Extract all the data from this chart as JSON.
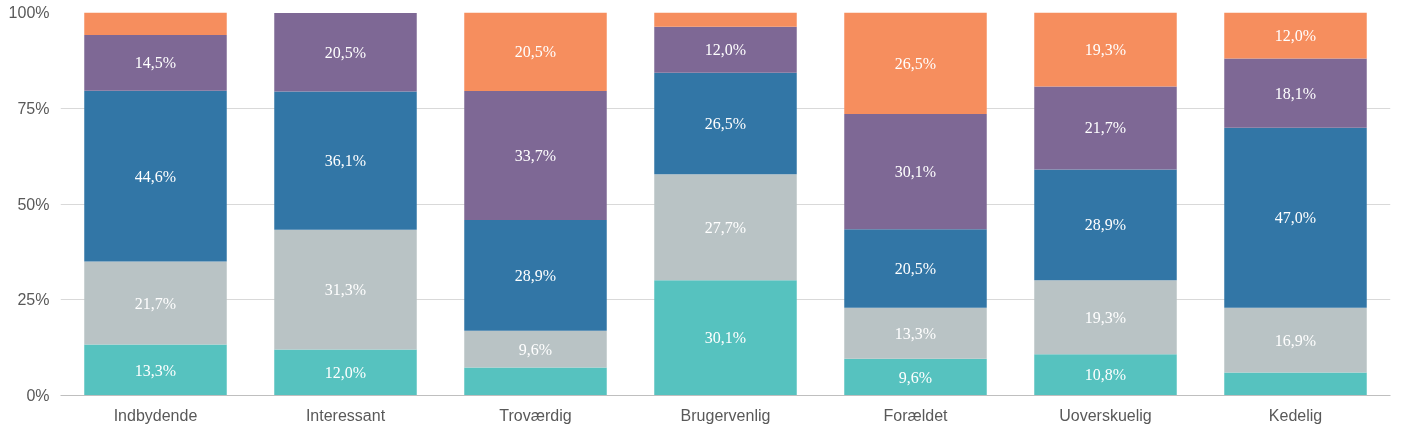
{
  "chart_data": {
    "type": "bar",
    "stacked": true,
    "categories": [
      "Indbydende",
      "Interessant",
      "Troværdig",
      "Brugervenlig",
      "Forældet",
      "Uoverskuelig",
      "Kedelig"
    ],
    "series": [
      {
        "color": "#56c2bf",
        "values": [
          13.3,
          12.0,
          7.3,
          30.1,
          9.6,
          10.8,
          6.0
        ],
        "value_labels": [
          "13,3%",
          "12,0%",
          null,
          "30,1%",
          "9,6%",
          "10,8%",
          null
        ]
      },
      {
        "color": "#b9c3c5",
        "values": [
          21.7,
          31.3,
          9.6,
          27.7,
          13.3,
          19.3,
          16.9
        ],
        "value_labels": [
          "21,7%",
          "31,3%",
          "9,6%",
          "27,7%",
          "13,3%",
          "19,3%",
          "16,9%"
        ]
      },
      {
        "color": "#3276a6",
        "values": [
          44.6,
          36.1,
          28.9,
          26.5,
          20.5,
          28.9,
          47.0
        ],
        "value_labels": [
          "44,6%",
          "36,1%",
          "28,9%",
          "26,5%",
          "20,5%",
          "28,9%",
          "47,0%"
        ]
      },
      {
        "color": "#7e6895",
        "values": [
          14.5,
          20.5,
          33.7,
          12.0,
          30.1,
          21.7,
          18.1
        ],
        "value_labels": [
          "14,5%",
          "20,5%",
          "33,7%",
          "12,0%",
          "30,1%",
          "21,7%",
          "18,1%"
        ]
      },
      {
        "color": "#f68e5e",
        "values": [
          5.9,
          0,
          20.5,
          3.7,
          26.5,
          19.3,
          12.0
        ],
        "value_labels": [
          null,
          null,
          "20,5%",
          null,
          "26,5%",
          "19,3%",
          "12,0%"
        ]
      }
    ],
    "ylim": [
      0,
      100
    ],
    "yticks": [
      {
        "value": 0,
        "label": "0%"
      },
      {
        "value": 25,
        "label": "25%"
      },
      {
        "value": 50,
        "label": "50%"
      },
      {
        "value": 75,
        "label": "75%"
      },
      {
        "value": 100,
        "label": "100%"
      }
    ],
    "grid": "y"
  }
}
